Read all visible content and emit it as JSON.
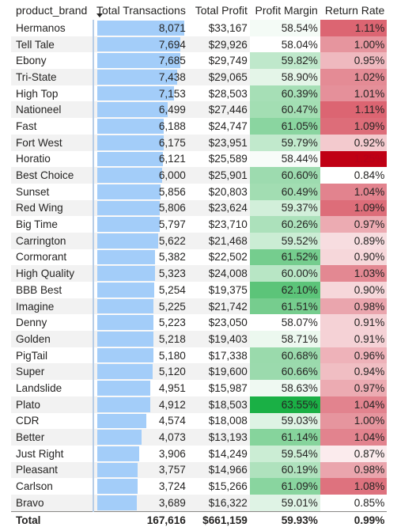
{
  "columns": {
    "brand": "product_brand",
    "transactions": "Total Transactions",
    "profit": "Total Profit",
    "margin": "Profit Margin",
    "return_rate": "Return Rate"
  },
  "sort": {
    "column": "transactions",
    "direction": "descending",
    "icon": "sort-descending-icon"
  },
  "max_transactions": 8071,
  "rows": [
    {
      "brand": "Hermanos",
      "transactions": "8,071",
      "tx": 8071,
      "profit": "$33,167",
      "margin": "58.54%",
      "return_rate": "1.11%",
      "margin_bg": "#f4fbf6",
      "return_bg": "#dc6572",
      "return_fg": "#252423"
    },
    {
      "brand": "Tell Tale",
      "transactions": "7,694",
      "tx": 7694,
      "profit": "$29,926",
      "margin": "58.04%",
      "return_rate": "1.00%",
      "margin_bg": "#ffffff",
      "return_bg": "#e6959e",
      "return_fg": "#252423"
    },
    {
      "brand": "Ebony",
      "transactions": "7,685",
      "tx": 7685,
      "profit": "$29,749",
      "margin": "59.82%",
      "return_rate": "0.95%",
      "margin_bg": "#bfe8cb",
      "return_bg": "#efb9bf",
      "return_fg": "#252423"
    },
    {
      "brand": "Tri-State",
      "transactions": "7,438",
      "tx": 7438,
      "profit": "$29,065",
      "margin": "58.90%",
      "return_rate": "1.02%",
      "margin_bg": "#e4f5e8",
      "return_bg": "#e48b95",
      "return_fg": "#252423"
    },
    {
      "brand": "High Top",
      "transactions": "7,153",
      "tx": 7153,
      "profit": "$28,503",
      "margin": "60.39%",
      "return_rate": "1.01%",
      "margin_bg": "#a6dfb6",
      "return_bg": "#e5909a",
      "return_fg": "#252423"
    },
    {
      "brand": "Nationeel",
      "transactions": "6,499",
      "tx": 6499,
      "profit": "$27,446",
      "margin": "60.47%",
      "return_rate": "1.11%",
      "margin_bg": "#a3deb3",
      "return_bg": "#dc6572",
      "return_fg": "#252423"
    },
    {
      "brand": "Fast",
      "transactions": "6,188",
      "tx": 6188,
      "profit": "$24,747",
      "margin": "61.05%",
      "return_rate": "1.09%",
      "margin_bg": "#8ad5a0",
      "return_bg": "#dd6d79",
      "return_fg": "#252423"
    },
    {
      "brand": "Fort West",
      "transactions": "6,175",
      "tx": 6175,
      "profit": "$23,951",
      "margin": "59.79%",
      "return_rate": "0.92%",
      "margin_bg": "#c1e9cc",
      "return_bg": "#f3cace",
      "return_fg": "#252423"
    },
    {
      "brand": "Horatio",
      "transactions": "6,121",
      "tx": 6121,
      "profit": "$25,589",
      "margin": "58.44%",
      "return_rate": "1.25%",
      "margin_bg": "#f8fcf9",
      "return_bg": "#c00014",
      "return_fg": "#b4001a"
    },
    {
      "brand": "Best Choice",
      "transactions": "6,000",
      "tx": 6000,
      "profit": "$25,901",
      "margin": "60.60%",
      "return_rate": "0.84%",
      "margin_bg": "#9ddbaf",
      "return_bg": "#ffffff",
      "return_fg": "#252423"
    },
    {
      "brand": "Sunset",
      "transactions": "5,856",
      "tx": 5856,
      "profit": "$20,803",
      "margin": "60.49%",
      "return_rate": "1.04%",
      "margin_bg": "#a2ddb2",
      "return_bg": "#e2838e",
      "return_fg": "#252423"
    },
    {
      "brand": "Red Wing",
      "transactions": "5,806",
      "tx": 5806,
      "profit": "$23,624",
      "margin": "59.37%",
      "return_rate": "1.09%",
      "margin_bg": "#d2efda",
      "return_bg": "#dd6d79",
      "return_fg": "#252423"
    },
    {
      "brand": "Big Time",
      "transactions": "5,797",
      "tx": 5797,
      "profit": "$23,710",
      "margin": "60.26%",
      "return_rate": "0.97%",
      "margin_bg": "#acE1bb",
      "return_bg": "#ecabb2",
      "return_fg": "#252423"
    },
    {
      "brand": "Carrington",
      "transactions": "5,622",
      "tx": 5622,
      "profit": "$21,468",
      "margin": "59.52%",
      "return_rate": "0.89%",
      "margin_bg": "#cbedd4",
      "return_bg": "#f7dde0",
      "return_fg": "#252423"
    },
    {
      "brand": "Cormorant",
      "transactions": "5,382",
      "tx": 5382,
      "profit": "$22,502",
      "margin": "61.52%",
      "return_rate": "0.90%",
      "margin_bg": "#75cd8e",
      "return_bg": "#f6d7da",
      "return_fg": "#252423"
    },
    {
      "brand": "High Quality",
      "transactions": "5,323",
      "tx": 5323,
      "profit": "$24,008",
      "margin": "60.00%",
      "return_rate": "1.03%",
      "margin_bg": "#b8e6c5",
      "return_bg": "#e38892",
      "return_fg": "#252423"
    },
    {
      "brand": "BBB Best",
      "transactions": "5,254",
      "tx": 5254,
      "profit": "$19,375",
      "margin": "62.10%",
      "return_rate": "0.90%",
      "margin_bg": "#5cc479",
      "return_bg": "#f6d7da",
      "return_fg": "#252423"
    },
    {
      "brand": "Imagine",
      "transactions": "5,225",
      "tx": 5225,
      "profit": "$21,742",
      "margin": "61.51%",
      "return_rate": "0.98%",
      "margin_bg": "#76cd8e",
      "return_bg": "#eaa5ad",
      "return_fg": "#252423"
    },
    {
      "brand": "Denny",
      "transactions": "5,223",
      "tx": 5223,
      "profit": "$23,050",
      "margin": "58.07%",
      "return_rate": "0.91%",
      "margin_bg": "#ffffff",
      "return_bg": "#f5d2d6",
      "return_fg": "#252423"
    },
    {
      "brand": "Golden",
      "transactions": "5,218",
      "tx": 5218,
      "profit": "$19,403",
      "margin": "58.71%",
      "return_rate": "0.91%",
      "margin_bg": "#ecf8ef",
      "return_bg": "#f5d2d6",
      "return_fg": "#252423"
    },
    {
      "brand": "PigTail",
      "transactions": "5,180",
      "tx": 5180,
      "profit": "$17,338",
      "margin": "60.68%",
      "return_rate": "0.96%",
      "margin_bg": "#9adaac",
      "return_bg": "#eeb2b9",
      "return_fg": "#252423"
    },
    {
      "brand": "Super",
      "transactions": "5,120",
      "tx": 5120,
      "profit": "$19,600",
      "margin": "60.66%",
      "return_rate": "0.94%",
      "margin_bg": "#9bdaad",
      "return_bg": "#f0bec3",
      "return_fg": "#252423"
    },
    {
      "brand": "Landslide",
      "transactions": "4,951",
      "tx": 4951,
      "profit": "$15,987",
      "margin": "58.63%",
      "return_rate": "0.97%",
      "margin_bg": "#eff9f2",
      "return_bg": "#ecabb2",
      "return_fg": "#252423"
    },
    {
      "brand": "Plato",
      "transactions": "4,912",
      "tx": 4912,
      "profit": "$18,503",
      "margin": "63.55%",
      "return_rate": "1.04%",
      "margin_bg": "#1ab045",
      "return_bg": "#e2838e",
      "return_fg": "#252423"
    },
    {
      "brand": "CDR",
      "transactions": "4,574",
      "tx": 4574,
      "profit": "$18,008",
      "margin": "59.03%",
      "return_rate": "1.00%",
      "margin_bg": "#def3e4",
      "return_bg": "#e6959e",
      "return_fg": "#252423"
    },
    {
      "brand": "Better",
      "transactions": "4,073",
      "tx": 4073,
      "profit": "$13,193",
      "margin": "61.14%",
      "return_rate": "1.04%",
      "margin_bg": "#86d49c",
      "return_bg": "#e2838e",
      "return_fg": "#252423"
    },
    {
      "brand": "Just Right",
      "transactions": "3,906",
      "tx": 3906,
      "profit": "$14,249",
      "margin": "59.54%",
      "return_rate": "0.87%",
      "margin_bg": "#cbedd4",
      "return_bg": "#fbebed",
      "return_fg": "#252423"
    },
    {
      "brand": "Pleasant",
      "transactions": "3,757",
      "tx": 3757,
      "profit": "$14,966",
      "margin": "60.19%",
      "return_rate": "0.98%",
      "margin_bg": "#afe2bd",
      "return_bg": "#eaa5ad",
      "return_fg": "#252423"
    },
    {
      "brand": "Carlson",
      "transactions": "3,724",
      "tx": 3724,
      "profit": "$15,266",
      "margin": "61.09%",
      "return_rate": "1.08%",
      "margin_bg": "#89d59f",
      "return_bg": "#de727e",
      "return_fg": "#252423"
    },
    {
      "brand": "Bravo",
      "transactions": "3,689",
      "tx": 3689,
      "profit": "$16,322",
      "margin": "59.01%",
      "return_rate": "0.85%",
      "margin_bg": "#dff3e5",
      "return_bg": "#ffffff",
      "return_fg": "#252423"
    }
  ],
  "total": {
    "label": "Total",
    "transactions": "167,616",
    "profit": "$661,159",
    "margin": "59.93%",
    "return_rate": "0.99%"
  },
  "colors": {
    "databar": "#a3cdf9",
    "margin_scale_high": "#1ab045",
    "return_scale_high": "#c00014"
  }
}
